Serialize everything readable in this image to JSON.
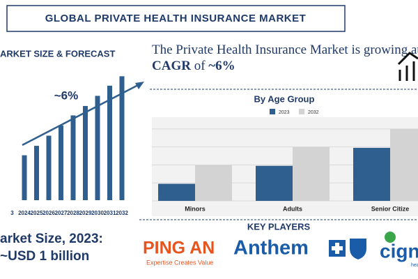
{
  "header": {
    "title": "GLOBAL PRIVATE HEALTH INSURANCE MARKET"
  },
  "headline": {
    "parts": [
      "The Private Health Insurance Market is growing at ",
      "CAGR",
      " of ",
      "~6%"
    ]
  },
  "chart_data": [
    {
      "type": "bar",
      "title": "ARKET SIZE & FORECAST",
      "annotation": "~6%",
      "categories": [
        "3",
        "2024",
        "2025",
        "2026",
        "2027",
        "2028",
        "2029",
        "2030",
        "2031",
        "2032"
      ],
      "values": [
        null,
        62,
        75,
        89,
        103,
        117,
        130,
        144,
        158,
        171
      ],
      "color": "#2e5f8e",
      "ylim": [
        0,
        180
      ]
    },
    {
      "type": "grouped-bar",
      "title": "By Age Group",
      "categories": [
        "Minors",
        "Adults",
        "Senior Citize"
      ],
      "series": [
        {
          "name": "2023",
          "color": "#2e5f8e",
          "values": [
            0.95,
            1.95,
            2.95
          ]
        },
        {
          "name": "2032",
          "color": "#d3d3d3",
          "values": [
            2,
            3,
            4
          ]
        }
      ],
      "ylim": [
        0,
        4.5
      ],
      "yticks": [
        0,
        1,
        2,
        3,
        4
      ],
      "grid": true
    }
  ],
  "market_size": {
    "label": "arket Size, 2023:",
    "value": "~USD 1 billion"
  },
  "key_players": {
    "title": "KEY PLAYERS",
    "players": [
      {
        "name": "PING AN",
        "tagline": "Expertise Creates Value"
      },
      {
        "name": "Anthem"
      },
      {
        "name": "cign",
        "tagline": "health"
      }
    ]
  }
}
